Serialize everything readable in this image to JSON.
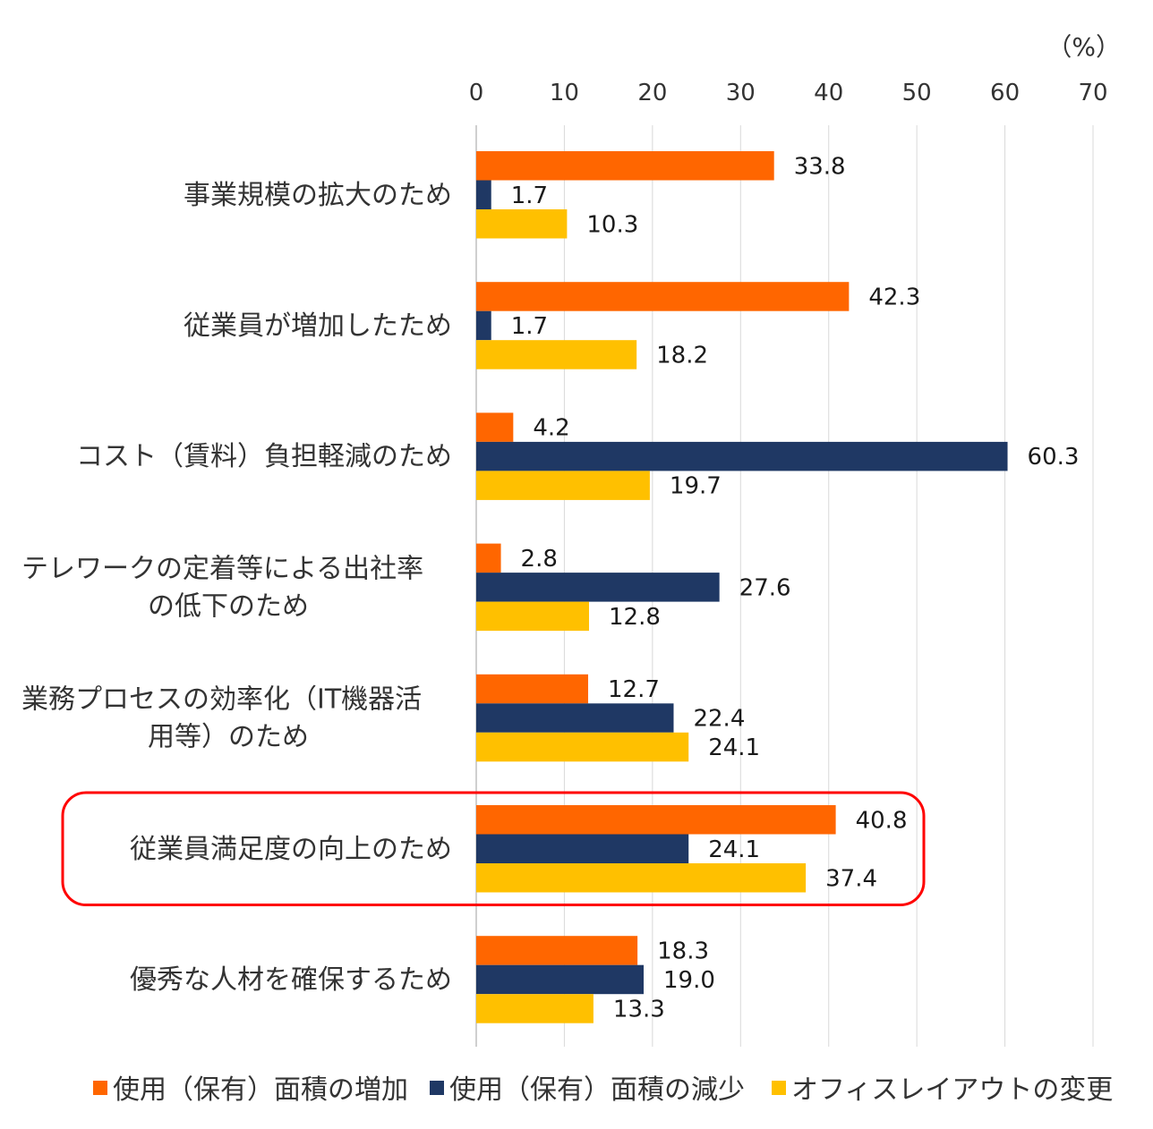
{
  "chart_data": {
    "type": "bar",
    "orientation": "horizontal",
    "unit": "（%）",
    "xlim": [
      0,
      70
    ],
    "ticks": [
      "0",
      "10",
      "20",
      "30",
      "40",
      "50",
      "60",
      "70"
    ],
    "grid": true,
    "categories": [
      [
        "事業規模の拡大のため"
      ],
      [
        "従業員が増加したため"
      ],
      [
        "コスト（賃料）負担軽減のため"
      ],
      [
        "テレワークの定着等による出社率",
        "の低下のため"
      ],
      [
        "業務プロセスの効率化（IT機器活",
        "用等）のため"
      ],
      [
        "従業員満足度の向上のため"
      ],
      [
        "優秀な人材を確保するため"
      ]
    ],
    "series": [
      {
        "name": "使用（保有）面積の増加",
        "color": "#ff6600",
        "values": [
          33.8,
          42.3,
          4.2,
          2.8,
          12.7,
          40.8,
          18.3
        ],
        "labels": [
          "33.8",
          "42.3",
          "4.2",
          "2.8",
          "12.7",
          "40.8",
          "18.3"
        ]
      },
      {
        "name": "使用（保有）面積の減少",
        "color": "#1f3864",
        "values": [
          1.7,
          1.7,
          60.3,
          27.6,
          22.4,
          24.1,
          19.0
        ],
        "labels": [
          "1.7",
          "1.7",
          "60.3",
          "27.6",
          "22.4",
          "24.1",
          "19.0"
        ]
      },
      {
        "name": "オフィスレイアウトの変更",
        "color": "#ffc000",
        "values": [
          10.3,
          18.2,
          19.7,
          12.8,
          24.1,
          37.4,
          13.3
        ],
        "labels": [
          "10.3",
          "18.2",
          "19.7",
          "12.8",
          "24.1",
          "37.4",
          "13.3"
        ]
      }
    ],
    "highlight_category_index": 5,
    "highlight_color": "#ff0000",
    "legend_position": "bottom",
    "axis_color": "#d9d9d9"
  }
}
